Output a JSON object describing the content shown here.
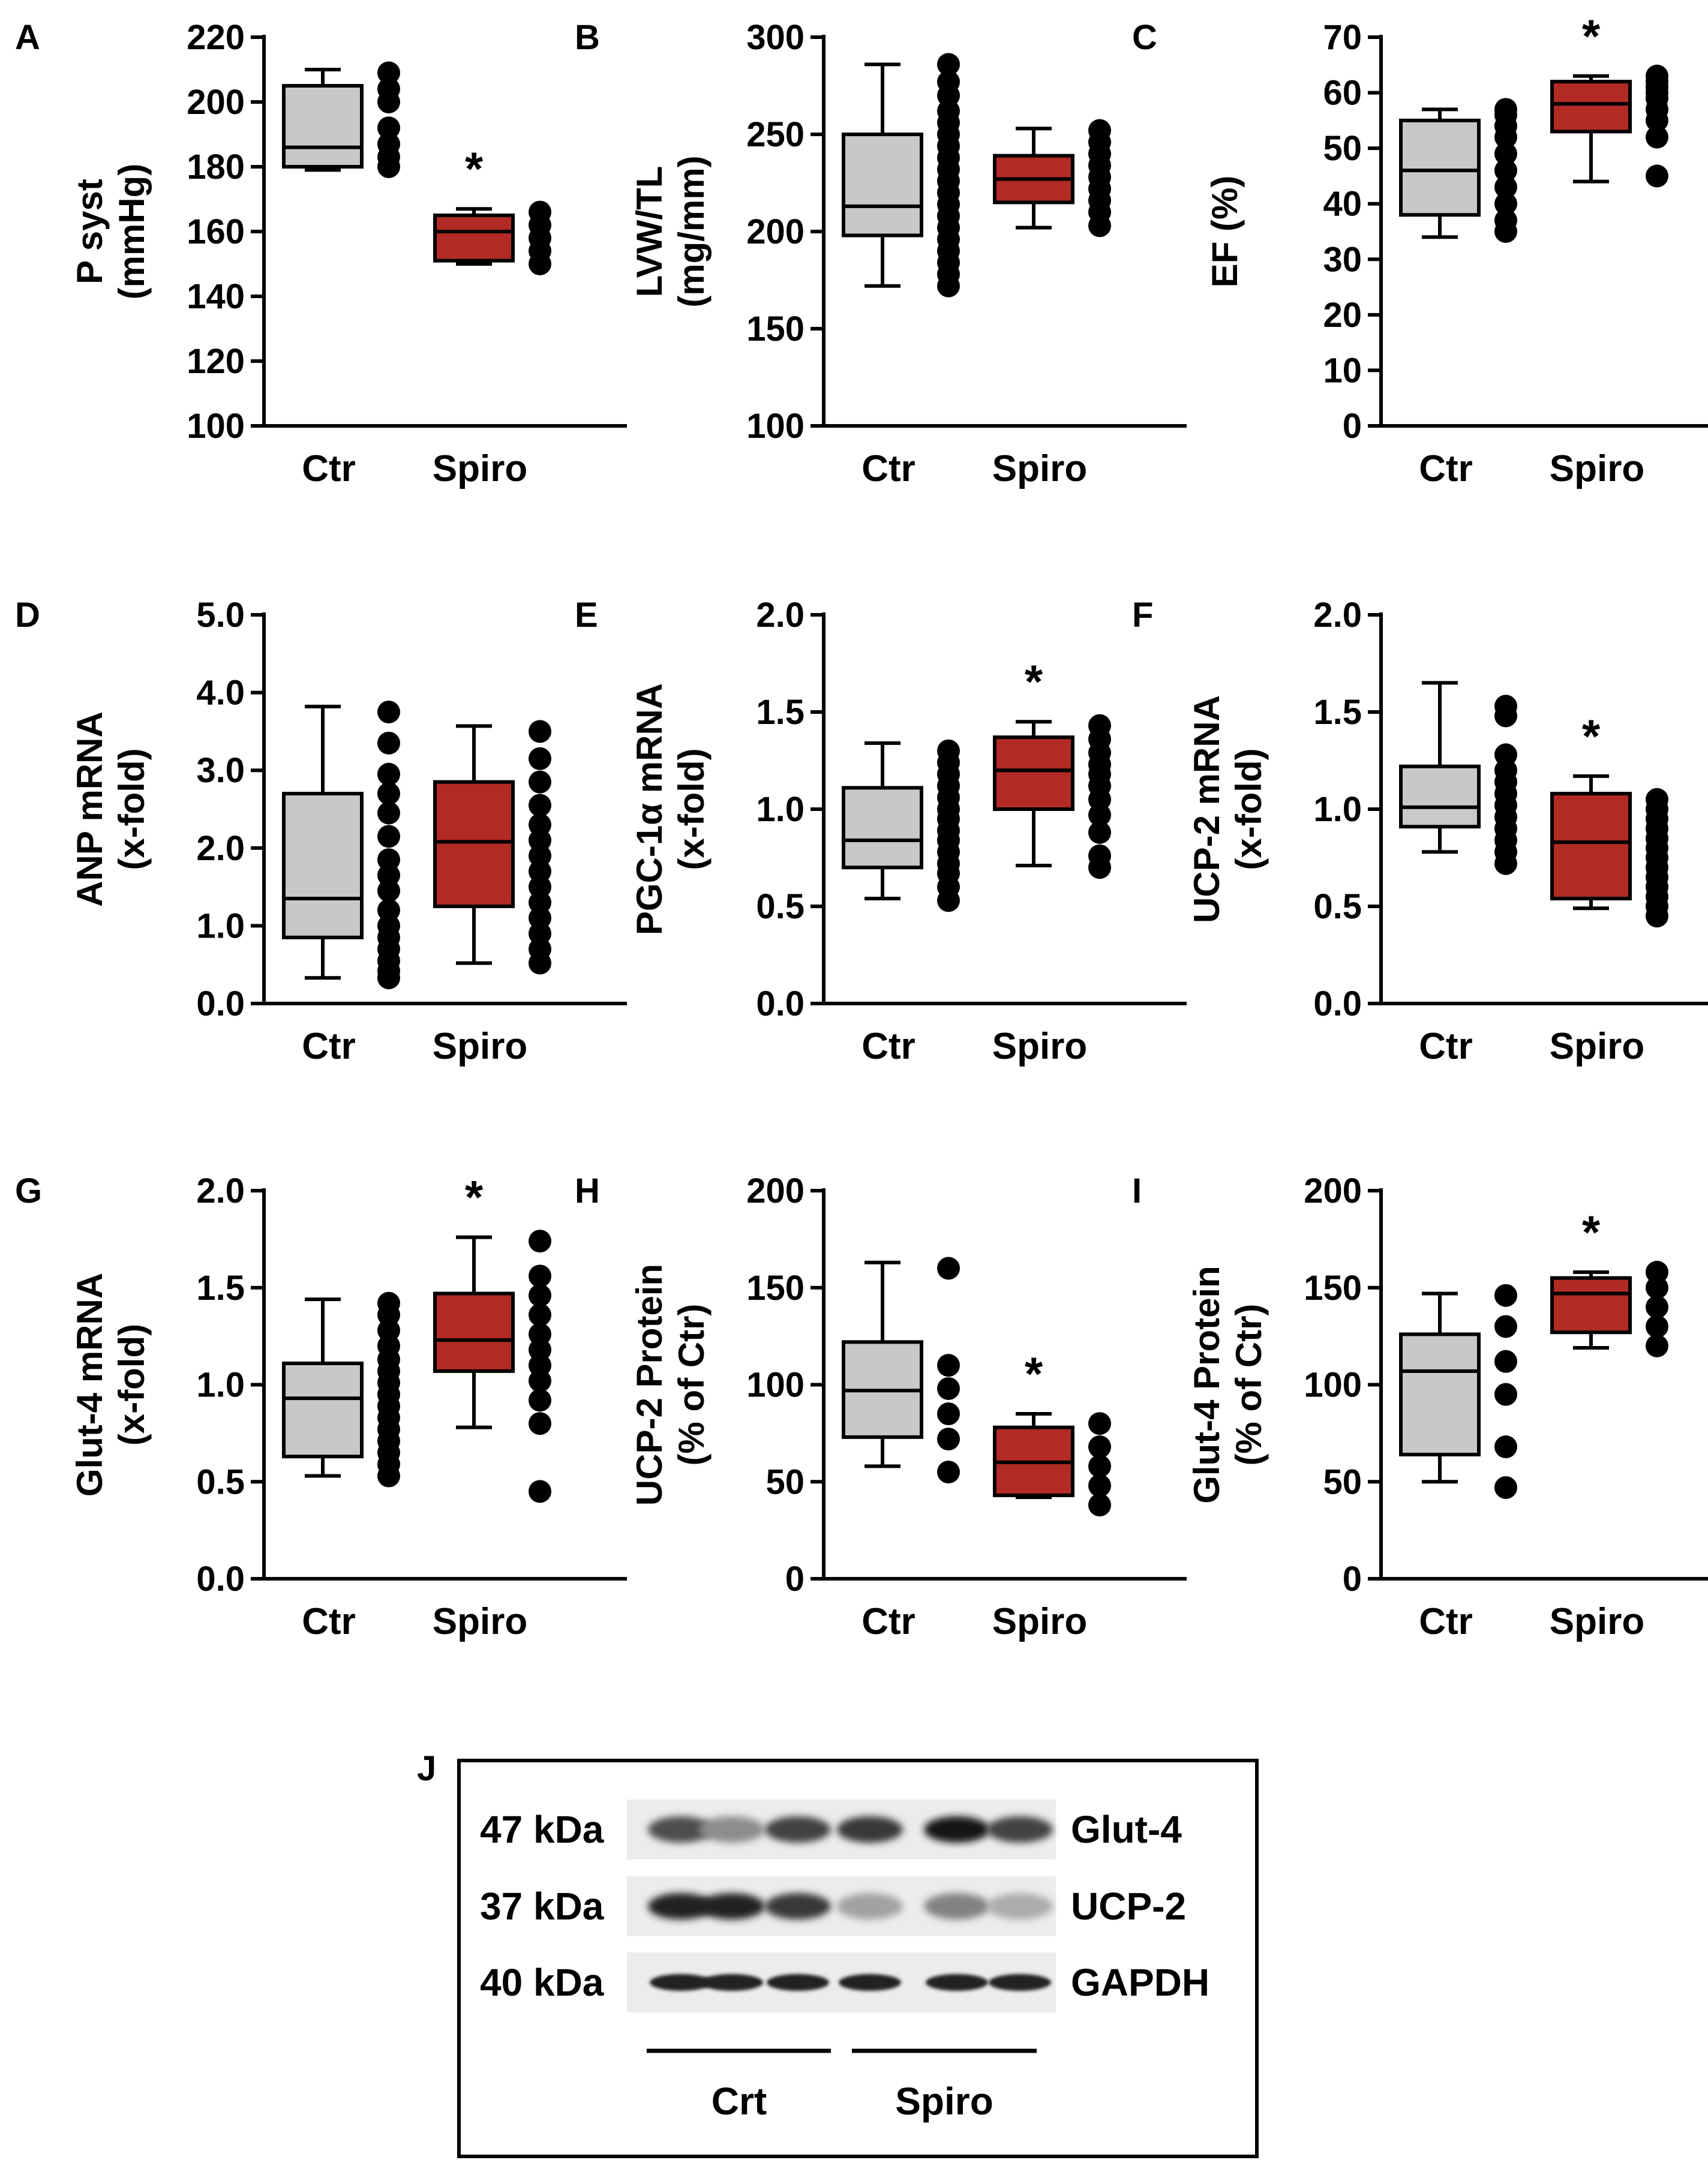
{
  "colors": {
    "ctr_fill": "#c8c8c8",
    "spiro_fill": "#b22a24",
    "stroke": "#000000",
    "dot": "#000000"
  },
  "chart_data": [
    {
      "id": "A",
      "type": "box",
      "panel_label": "A",
      "ylabel": [
        "P syst",
        "(mmHg)"
      ],
      "ylim": [
        100,
        220
      ],
      "yticks": [
        100,
        120,
        140,
        160,
        180,
        200,
        220
      ],
      "categories": [
        "Ctr",
        "Spiro"
      ],
      "boxes": [
        {
          "name": "Ctr",
          "min": 179,
          "q1": 180,
          "median": 186,
          "q3": 205,
          "max": 210
        },
        {
          "name": "Spiro",
          "min": 150,
          "q1": 151,
          "median": 160,
          "q3": 165,
          "max": 167
        }
      ],
      "points": [
        [
          180,
          183,
          187,
          192,
          200,
          204,
          209
        ],
        [
          150,
          154,
          158,
          162,
          166
        ]
      ],
      "significant": [
        false,
        true
      ]
    },
    {
      "id": "B",
      "type": "box",
      "panel_label": "B",
      "ylabel": [
        "LVW/TL",
        "(mg/mm)"
      ],
      "ylim": [
        100,
        300
      ],
      "yticks": [
        100,
        150,
        200,
        250,
        300
      ],
      "categories": [
        "Ctr",
        "Spiro"
      ],
      "boxes": [
        {
          "name": "Ctr",
          "min": 172,
          "q1": 198,
          "median": 213,
          "q3": 250,
          "max": 286
        },
        {
          "name": "Spiro",
          "min": 202,
          "q1": 215,
          "median": 227,
          "q3": 239,
          "max": 253
        }
      ],
      "points": [
        [
          172,
          178,
          184,
          190,
          196,
          202,
          208,
          214,
          220,
          226,
          232,
          238,
          244,
          250,
          256,
          262,
          270,
          277,
          286
        ],
        [
          203,
          210,
          216,
          222,
          228,
          234,
          240,
          246,
          252
        ]
      ],
      "significant": [
        false,
        false
      ]
    },
    {
      "id": "C",
      "type": "box",
      "panel_label": "C",
      "ylabel": [
        "EF (%)"
      ],
      "ylim": [
        0,
        70
      ],
      "yticks": [
        0,
        10,
        20,
        30,
        40,
        50,
        60,
        70
      ],
      "categories": [
        "Ctr",
        "Spiro"
      ],
      "boxes": [
        {
          "name": "Ctr",
          "min": 34,
          "q1": 38,
          "median": 46,
          "q3": 55,
          "max": 57
        },
        {
          "name": "Spiro",
          "min": 44,
          "q1": 53,
          "median": 58,
          "q3": 62,
          "max": 63
        }
      ],
      "points": [
        [
          35,
          37,
          40,
          43,
          46,
          49,
          52,
          54,
          56,
          57
        ],
        [
          45,
          52,
          55,
          57,
          59,
          60,
          61,
          62,
          63
        ]
      ],
      "significant": [
        false,
        true
      ]
    },
    {
      "id": "D",
      "type": "box",
      "panel_label": "D",
      "ylabel": [
        "ANP mRNA",
        "(x-fold)"
      ],
      "ylim": [
        0,
        5
      ],
      "yticks": [
        "0.0",
        "1.0",
        "2.0",
        "3.0",
        "4.0",
        "5.0"
      ],
      "categories": [
        "Ctr",
        "Spiro"
      ],
      "boxes": [
        {
          "name": "Ctr",
          "min": 0.33,
          "q1": 0.85,
          "median": 1.35,
          "q3": 2.7,
          "max": 3.82
        },
        {
          "name": "Spiro",
          "min": 0.52,
          "q1": 1.25,
          "median": 2.08,
          "q3": 2.85,
          "max": 3.57
        }
      ],
      "points": [
        [
          0.33,
          0.42,
          0.55,
          0.7,
          0.85,
          1.0,
          1.2,
          1.45,
          1.65,
          1.85,
          2.15,
          2.45,
          2.7,
          2.95,
          3.35,
          3.75
        ],
        [
          0.52,
          0.7,
          0.9,
          1.1,
          1.3,
          1.5,
          1.7,
          1.9,
          2.1,
          2.3,
          2.55,
          2.85,
          3.15,
          3.5
        ]
      ],
      "significant": [
        false,
        false
      ]
    },
    {
      "id": "E",
      "type": "box",
      "panel_label": "E",
      "ylabel": [
        "PGC-1α mRNA",
        "(x-fold)"
      ],
      "ylim": [
        0,
        2
      ],
      "yticks": [
        "0.0",
        "0.5",
        "1.0",
        "1.5",
        "2.0"
      ],
      "categories": [
        "Ctr",
        "Spiro"
      ],
      "boxes": [
        {
          "name": "Ctr",
          "min": 0.54,
          "q1": 0.7,
          "median": 0.84,
          "q3": 1.11,
          "max": 1.34
        },
        {
          "name": "Spiro",
          "min": 0.71,
          "q1": 1.0,
          "median": 1.2,
          "q3": 1.37,
          "max": 1.45
        }
      ],
      "points": [
        [
          0.53,
          0.6,
          0.67,
          0.72,
          0.78,
          0.84,
          0.89,
          0.95,
          1.0,
          1.06,
          1.12,
          1.18,
          1.24,
          1.3
        ],
        [
          0.7,
          0.76,
          0.88,
          0.97,
          1.05,
          1.12,
          1.18,
          1.23,
          1.29,
          1.36,
          1.43
        ]
      ],
      "significant": [
        false,
        true
      ]
    },
    {
      "id": "F",
      "type": "box",
      "panel_label": "F",
      "ylabel": [
        "UCP-2 mRNA",
        "(x-fold)"
      ],
      "ylim": [
        0,
        2
      ],
      "yticks": [
        "0.0",
        "0.5",
        "1.0",
        "1.5",
        "2.0"
      ],
      "categories": [
        "Ctr",
        "Spiro"
      ],
      "boxes": [
        {
          "name": "Ctr",
          "min": 0.78,
          "q1": 0.91,
          "median": 1.01,
          "q3": 1.22,
          "max": 1.65
        },
        {
          "name": "Spiro",
          "min": 0.49,
          "q1": 0.54,
          "median": 0.83,
          "q3": 1.08,
          "max": 1.17
        }
      ],
      "points": [
        [
          0.72,
          0.78,
          0.84,
          0.9,
          0.96,
          1.02,
          1.08,
          1.14,
          1.2,
          1.28,
          1.48,
          1.53
        ],
        [
          0.45,
          0.5,
          0.55,
          0.6,
          0.65,
          0.7,
          0.75,
          0.8,
          0.85,
          0.9,
          0.95,
          1.0,
          1.05
        ]
      ],
      "significant": [
        false,
        true
      ]
    },
    {
      "id": "G",
      "type": "box",
      "panel_label": "G",
      "ylabel": [
        "Glut-4 mRNA",
        "(x-fold)"
      ],
      "ylim": [
        0,
        2
      ],
      "yticks": [
        "0.0",
        "0.5",
        "1.0",
        "1.5",
        "2.0"
      ],
      "categories": [
        "Ctr",
        "Spiro"
      ],
      "boxes": [
        {
          "name": "Ctr",
          "min": 0.53,
          "q1": 0.63,
          "median": 0.93,
          "q3": 1.11,
          "max": 1.44
        },
        {
          "name": "Spiro",
          "min": 0.78,
          "q1": 1.07,
          "median": 1.23,
          "q3": 1.47,
          "max": 1.76
        }
      ],
      "points": [
        [
          0.53,
          0.59,
          0.65,
          0.71,
          0.77,
          0.83,
          0.89,
          0.95,
          1.01,
          1.07,
          1.13,
          1.2,
          1.28,
          1.36,
          1.42
        ],
        [
          0.45,
          0.8,
          0.92,
          1.02,
          1.1,
          1.18,
          1.26,
          1.36,
          1.46,
          1.56,
          1.74
        ]
      ],
      "significant": [
        false,
        true
      ]
    },
    {
      "id": "H",
      "type": "box",
      "panel_label": "H",
      "ylabel": [
        "UCP-2 Protein",
        "(% of Ctr)"
      ],
      "ylim": [
        0,
        200
      ],
      "yticks": [
        0,
        50,
        100,
        150,
        200
      ],
      "categories": [
        "Ctr",
        "Spiro"
      ],
      "boxes": [
        {
          "name": "Ctr",
          "min": 58,
          "q1": 73,
          "median": 97,
          "q3": 122,
          "max": 163
        },
        {
          "name": "Spiro",
          "min": 42,
          "q1": 43,
          "median": 60,
          "q3": 78,
          "max": 85
        }
      ],
      "points": [
        [
          55,
          72,
          85,
          98,
          110,
          160
        ],
        [
          38,
          48,
          58,
          68,
          80
        ]
      ],
      "significant": [
        false,
        true
      ]
    },
    {
      "id": "I",
      "type": "box",
      "panel_label": "I",
      "ylabel": [
        "Glut-4 Protein",
        "(% of Ctr)"
      ],
      "ylim": [
        0,
        200
      ],
      "yticks": [
        0,
        50,
        100,
        150,
        200
      ],
      "categories": [
        "Ctr",
        "Spiro"
      ],
      "boxes": [
        {
          "name": "Ctr",
          "min": 50,
          "q1": 64,
          "median": 107,
          "q3": 126,
          "max": 147
        },
        {
          "name": "Spiro",
          "min": 119,
          "q1": 127,
          "median": 147,
          "q3": 155,
          "max": 158
        }
      ],
      "points": [
        [
          47,
          68,
          95,
          112,
          130,
          146
        ],
        [
          120,
          130,
          140,
          150,
          158
        ]
      ],
      "significant": [
        false,
        true
      ]
    }
  ],
  "blot": {
    "panel_label": "J",
    "rows": [
      {
        "kda": "47 kDa",
        "protein": "Glut-4",
        "intensity": [
          0.75,
          0.45,
          0.8,
          0.85,
          1.0,
          0.8
        ]
      },
      {
        "kda": "37 kDa",
        "protein": "UCP-2",
        "intensity": [
          0.95,
          0.95,
          0.85,
          0.35,
          0.5,
          0.3
        ]
      },
      {
        "kda": "40 kDa",
        "protein": "GAPDH",
        "intensity": [
          0.95,
          0.95,
          0.95,
          0.95,
          0.95,
          0.95
        ]
      }
    ],
    "groups": [
      "Crt",
      "Spiro"
    ]
  },
  "significance_marker": "*"
}
